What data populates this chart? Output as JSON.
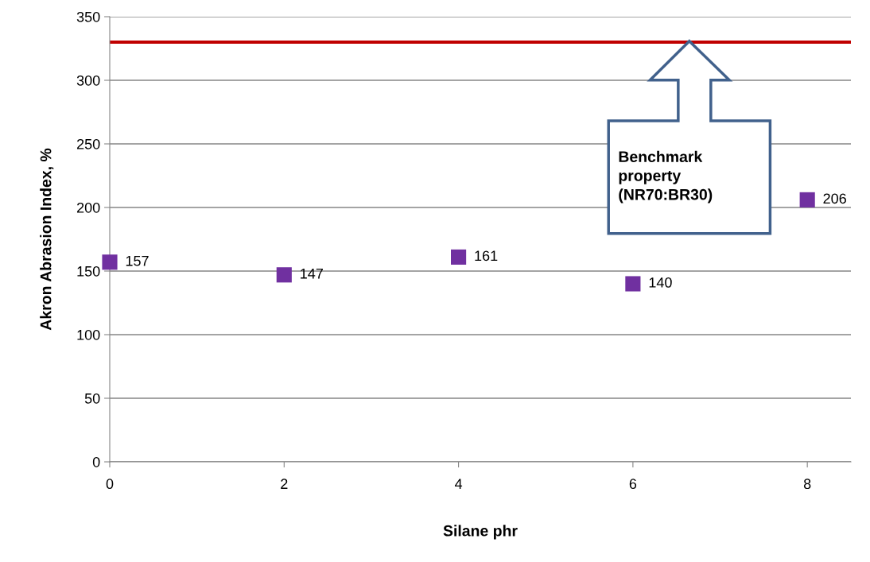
{
  "chart_data": {
    "type": "scatter",
    "xlabel": "Silane phr",
    "ylabel": "Akron Abrasion Index, %",
    "x": [
      0,
      2,
      4,
      6,
      8
    ],
    "series": [
      {
        "color": "#7030a0",
        "values": [
          157,
          147,
          161,
          140,
          206
        ]
      }
    ],
    "data_labels": true,
    "marker": "square",
    "grid": "y",
    "xlim": [
      0,
      8.5
    ],
    "xticks": [
      0,
      2,
      4,
      6,
      8
    ],
    "ylim": [
      0,
      350
    ],
    "yticks": [
      0,
      50,
      100,
      150,
      200,
      250,
      300,
      350
    ],
    "ref_lines": [
      {
        "axis": "y",
        "value": 330,
        "color": "#c00000"
      }
    ],
    "annotations": [
      "Benchmark\nproperty\n(NR70:BR30)"
    ]
  }
}
